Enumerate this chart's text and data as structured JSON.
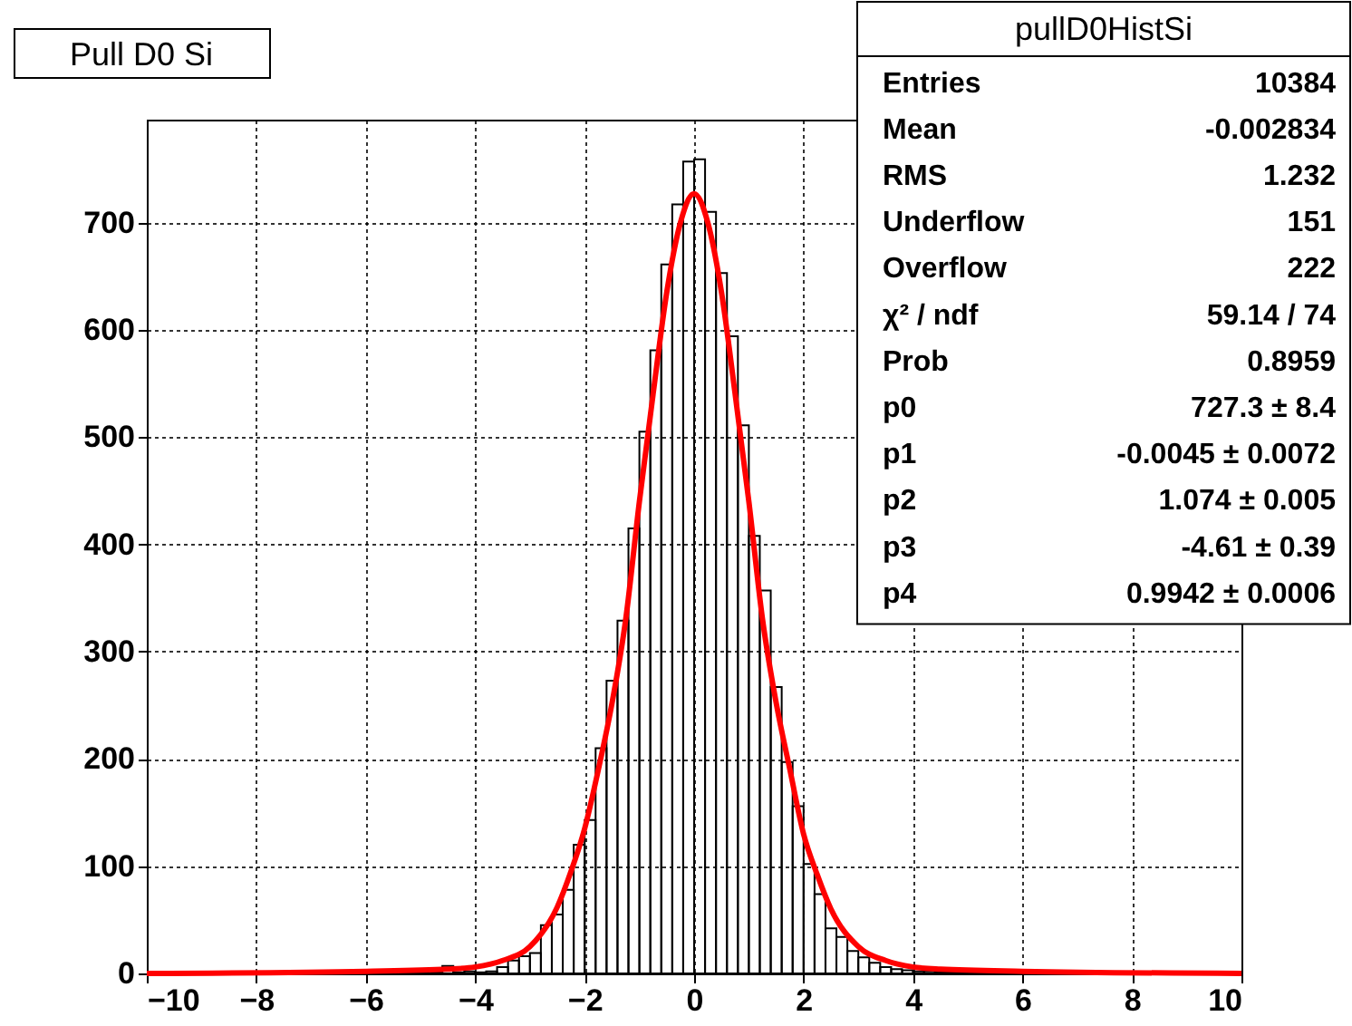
{
  "chart_data": {
    "type": "histogram",
    "title": "Pull D0 Si",
    "bins": [
      -10,
      -9.8,
      -9.6,
      -9.4,
      -9.2,
      -9,
      -8.8,
      -8.6,
      -8.4,
      -8.2,
      -8,
      -7.8,
      -7.6,
      -7.4,
      -7.2,
      -7,
      -6.8,
      -6.6,
      -6.4,
      -6.2,
      -6,
      -5.8,
      -5.6,
      -5.4,
      -5.2,
      -5,
      -4.8,
      -4.6,
      -4.4,
      -4.2,
      -4,
      -3.8,
      -3.6,
      -3.4,
      -3.2,
      -3,
      -2.8,
      -2.6,
      -2.4,
      -2.2,
      -2,
      -1.8,
      -1.6,
      -1.4,
      -1.2,
      -1,
      -0.8,
      -0.6,
      -0.4,
      -0.2,
      0,
      0.2,
      0.4,
      0.6,
      0.8,
      1,
      1.2,
      1.4,
      1.6,
      1.8,
      2,
      2.2,
      2.4,
      2.6,
      2.8,
      3,
      3.2,
      3.4,
      3.6,
      3.8,
      4,
      4.2,
      4.4,
      4.6,
      4.8,
      5,
      5.2,
      5.4,
      5.6,
      5.8,
      6,
      6.2,
      6.4,
      6.6,
      6.8,
      7,
      7.2,
      7.4,
      7.6,
      7.8,
      8,
      8.2,
      8.4,
      8.6,
      8.8,
      9,
      9.2,
      9.4,
      9.6,
      9.8,
      10
    ],
    "values": [
      0,
      0,
      0,
      0,
      0,
      0,
      0,
      0,
      1,
      0,
      0,
      0,
      0,
      0,
      0,
      0,
      1,
      0,
      0,
      0,
      0,
      1,
      0,
      0,
      1,
      0,
      1,
      7,
      1,
      2,
      1,
      2,
      6,
      12,
      16,
      19,
      45,
      55,
      78,
      120,
      143,
      210,
      273,
      329,
      415,
      505,
      581,
      661,
      717,
      757,
      759,
      710,
      653,
      594,
      511,
      408,
      357,
      267,
      197,
      156,
      102,
      74,
      42,
      34,
      21,
      15,
      10,
      6,
      4,
      3,
      2,
      2,
      1,
      1,
      1,
      0,
      1,
      0,
      0,
      1,
      0,
      0,
      1,
      0,
      0,
      0,
      0,
      1,
      0,
      0,
      0,
      0,
      0,
      0,
      1,
      0,
      0,
      0,
      0,
      0
    ],
    "color": "#000000",
    "series": [
      {
        "type": "line",
        "color": "#ff0000",
        "x": [
          -10,
          -6,
          -4.5,
          -4,
          -3.5,
          -3,
          -2.5,
          -2.25,
          -2,
          -1.75,
          -1.5,
          -1.25,
          -1,
          -0.75,
          -0.5,
          -0.25,
          0,
          0.25,
          0.5,
          0.75,
          1,
          1.25,
          1.5,
          1.75,
          2,
          2.25,
          2.5,
          3,
          3.5,
          4,
          4.5,
          6,
          10
        ],
        "values": [
          0,
          2,
          4,
          6,
          12,
          25,
          62,
          95,
          135,
          190,
          252,
          330,
          440,
          540,
          635,
          700,
          727,
          700,
          635,
          540,
          440,
          330,
          252,
          190,
          130,
          92,
          60,
          25,
          12,
          6,
          4,
          2,
          0
        ]
      }
    ],
    "xlim": [
      -10,
      10
    ],
    "xticks": [
      -10,
      -8,
      -6,
      -4,
      -2,
      0,
      2,
      4,
      6,
      8,
      10
    ],
    "ylim": [
      0,
      796
    ],
    "yticks": [
      0,
      100,
      200,
      300,
      400,
      500,
      600,
      700
    ],
    "grid": true,
    "annotations": [
      "pullD0HistSi",
      "Entries",
      "10384",
      "Mean",
      "-0.002834",
      "RMS",
      "1.232",
      "Underflow",
      "151",
      "Overflow",
      "222",
      "χ² / ndf",
      "59.14 / 74",
      "Prob",
      "0.8959",
      "p0",
      "727.3 ± 8.4",
      "p1",
      "-0.0045 ± 0.0072",
      "p2",
      "1.074 ± 0.005",
      "p3",
      "-4.61 ± 0.39",
      "p4",
      "0.9942 ± 0.0006"
    ]
  }
}
